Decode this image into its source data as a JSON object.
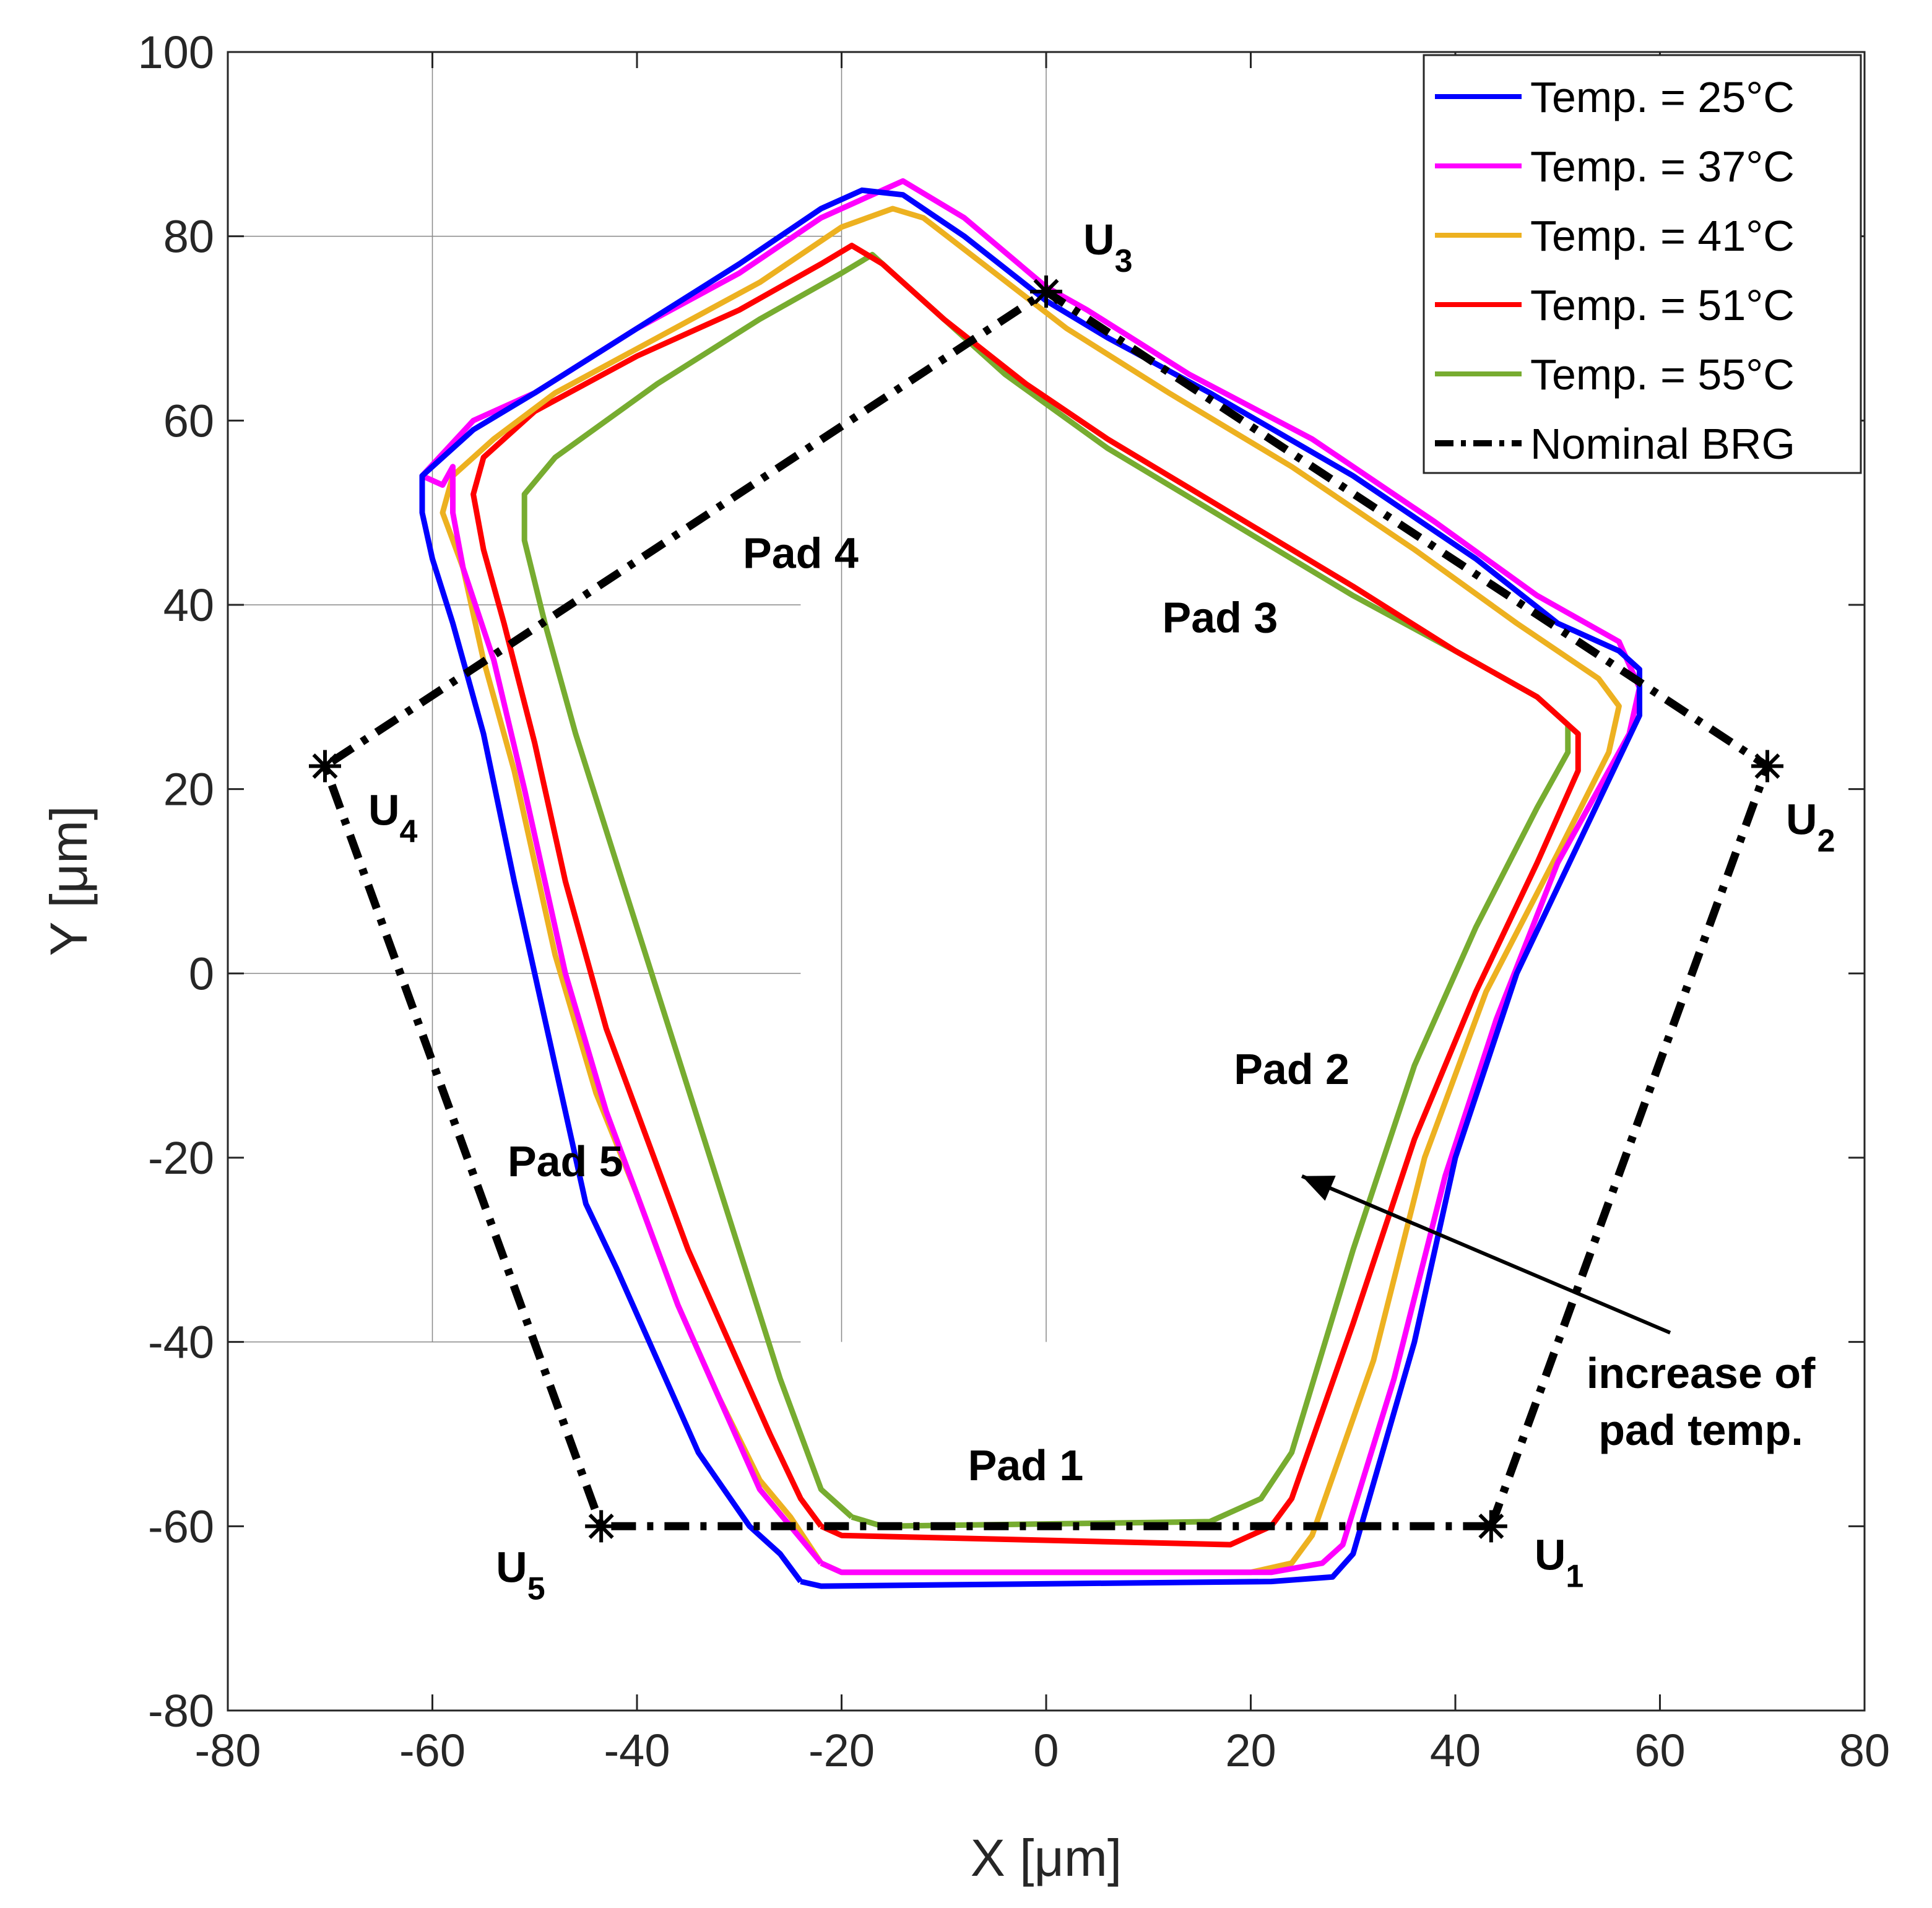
{
  "chart_data": {
    "type": "line",
    "title": "",
    "xlabel": "X [μm]",
    "ylabel": "Y [μm]",
    "xlim": [
      -80,
      80
    ],
    "ylim": [
      -80,
      100
    ],
    "xticks": [
      -80,
      -60,
      -40,
      -20,
      0,
      20,
      40,
      60,
      80
    ],
    "yticks": [
      -80,
      -60,
      -40,
      -20,
      0,
      20,
      40,
      60,
      80,
      100
    ],
    "xtick_labels": [
      "-80",
      "-60",
      "-40",
      "-20",
      "0",
      "20",
      "40",
      "60",
      "80"
    ],
    "ytick_labels": [
      "-80",
      "-60",
      "-40",
      "-20",
      "0",
      "20",
      "40",
      "60",
      "80",
      "100"
    ],
    "legend_position": "top-right",
    "series": [
      {
        "name": "Temp. = 25°C",
        "color": "#0000ff",
        "style": "solid",
        "points": [
          [
            -24,
            -66
          ],
          [
            -22,
            -66.5
          ],
          [
            22,
            -66
          ],
          [
            28,
            -65.5
          ],
          [
            30,
            -63
          ],
          [
            36,
            -40
          ],
          [
            40,
            -20
          ],
          [
            46,
            0
          ],
          [
            52,
            14
          ],
          [
            58,
            28
          ],
          [
            58,
            33
          ],
          [
            56,
            35
          ],
          [
            50,
            38
          ],
          [
            42,
            45
          ],
          [
            30,
            54
          ],
          [
            16,
            63
          ],
          [
            6,
            69
          ],
          [
            0,
            73
          ],
          [
            -8,
            80
          ],
          [
            -14,
            84.5
          ],
          [
            -18,
            85
          ],
          [
            -22,
            83
          ],
          [
            -30,
            77
          ],
          [
            -40,
            70
          ],
          [
            -50,
            63
          ],
          [
            -56,
            59
          ],
          [
            -61,
            54
          ],
          [
            -61,
            50
          ],
          [
            -60,
            45
          ],
          [
            -58,
            38
          ],
          [
            -55,
            26
          ],
          [
            -52,
            10
          ],
          [
            -48,
            -10
          ],
          [
            -45,
            -25
          ],
          [
            -42,
            -32
          ],
          [
            -38,
            -42
          ],
          [
            -34,
            -52
          ],
          [
            -29,
            -60
          ],
          [
            -26,
            -63
          ],
          [
            -24,
            -66
          ]
        ]
      },
      {
        "name": "Temp. = 37°C",
        "color": "#ff00ff",
        "style": "solid",
        "points": [
          [
            -22,
            -64
          ],
          [
            -20,
            -65
          ],
          [
            22,
            -65
          ],
          [
            27,
            -64
          ],
          [
            29,
            -62
          ],
          [
            34,
            -44
          ],
          [
            39,
            -22
          ],
          [
            44,
            -5
          ],
          [
            50,
            12
          ],
          [
            57,
            26
          ],
          [
            58,
            31
          ],
          [
            56,
            36
          ],
          [
            48,
            41
          ],
          [
            38,
            49
          ],
          [
            26,
            58
          ],
          [
            14,
            65
          ],
          [
            4,
            72
          ],
          [
            0,
            74.5
          ],
          [
            -8,
            82
          ],
          [
            -14,
            86
          ],
          [
            -18,
            84
          ],
          [
            -22,
            82
          ],
          [
            -30,
            76
          ],
          [
            -40,
            70
          ],
          [
            -50,
            63
          ],
          [
            -56,
            60
          ],
          [
            -61,
            54
          ],
          [
            -59,
            53
          ],
          [
            -58,
            55
          ],
          [
            -58,
            50
          ],
          [
            -57,
            44
          ],
          [
            -54,
            34
          ],
          [
            -51,
            20
          ],
          [
            -47,
            0
          ],
          [
            -43,
            -15
          ],
          [
            -40,
            -24
          ],
          [
            -36,
            -36
          ],
          [
            -32,
            -46
          ],
          [
            -28,
            -56
          ],
          [
            -25,
            -60
          ],
          [
            -22,
            -64
          ]
        ]
      },
      {
        "name": "Temp. = 41°C",
        "color": "#edb120",
        "style": "solid",
        "points": [
          [
            -22,
            -64
          ],
          [
            -20,
            -65
          ],
          [
            20,
            -65
          ],
          [
            24,
            -64
          ],
          [
            26,
            -61
          ],
          [
            32,
            -42
          ],
          [
            37,
            -20
          ],
          [
            43,
            -2
          ],
          [
            50,
            13
          ],
          [
            55,
            24
          ],
          [
            56,
            29
          ],
          [
            54,
            32
          ],
          [
            46,
            38
          ],
          [
            36,
            46
          ],
          [
            24,
            55
          ],
          [
            12,
            63
          ],
          [
            2,
            70
          ],
          [
            -5,
            76
          ],
          [
            -12,
            82
          ],
          [
            -15,
            83
          ],
          [
            -20,
            81
          ],
          [
            -28,
            75
          ],
          [
            -38,
            69
          ],
          [
            -48,
            63
          ],
          [
            -54,
            58
          ],
          [
            -58,
            54
          ],
          [
            -59,
            50
          ],
          [
            -57,
            44
          ],
          [
            -55,
            34
          ],
          [
            -52,
            22
          ],
          [
            -48,
            2
          ],
          [
            -44,
            -13
          ],
          [
            -40,
            -24
          ],
          [
            -36,
            -36
          ],
          [
            -32,
            -46
          ],
          [
            -28,
            -55
          ],
          [
            -25,
            -59
          ],
          [
            -22,
            -64
          ]
        ]
      },
      {
        "name": "Temp. = 51°C",
        "color": "#ff0000",
        "style": "solid",
        "points": [
          [
            -22,
            -60
          ],
          [
            -20,
            -61
          ],
          [
            18,
            -62
          ],
          [
            22,
            -60
          ],
          [
            24,
            -57
          ],
          [
            30,
            -38
          ],
          [
            36,
            -18
          ],
          [
            42,
            -2
          ],
          [
            48,
            12
          ],
          [
            52,
            22
          ],
          [
            52,
            26
          ],
          [
            48,
            30
          ],
          [
            40,
            35
          ],
          [
            30,
            42
          ],
          [
            18,
            50
          ],
          [
            6,
            58
          ],
          [
            -2,
            64
          ],
          [
            -10,
            71
          ],
          [
            -16,
            77
          ],
          [
            -19,
            79
          ],
          [
            -22,
            77
          ],
          [
            -30,
            72
          ],
          [
            -40,
            67
          ],
          [
            -50,
            61
          ],
          [
            -55,
            56
          ],
          [
            -56,
            52
          ],
          [
            -55,
            46
          ],
          [
            -53,
            38
          ],
          [
            -50,
            25
          ],
          [
            -47,
            10
          ],
          [
            -43,
            -6
          ],
          [
            -39,
            -18
          ],
          [
            -35,
            -30
          ],
          [
            -31,
            -40
          ],
          [
            -27,
            -50
          ],
          [
            -24,
            -57
          ],
          [
            -22,
            -60
          ]
        ]
      },
      {
        "name": "Temp. = 55°C",
        "color": "#77ac30",
        "style": "solid",
        "points": [
          [
            -19,
            -59
          ],
          [
            -16,
            -60
          ],
          [
            16,
            -59.5
          ],
          [
            21,
            -57
          ],
          [
            24,
            -52
          ],
          [
            30,
            -30
          ],
          [
            36,
            -10
          ],
          [
            42,
            5
          ],
          [
            48,
            18
          ],
          [
            51,
            24
          ],
          [
            51,
            27
          ],
          [
            48,
            30
          ],
          [
            40,
            35
          ],
          [
            30,
            41
          ],
          [
            18,
            49
          ],
          [
            6,
            57
          ],
          [
            -4,
            65
          ],
          [
            -10,
            71
          ],
          [
            -15,
            76
          ],
          [
            -17,
            78
          ],
          [
            -20,
            76
          ],
          [
            -28,
            71
          ],
          [
            -38,
            64
          ],
          [
            -48,
            56
          ],
          [
            -51,
            52
          ],
          [
            -51,
            47
          ],
          [
            -49,
            38
          ],
          [
            -46,
            26
          ],
          [
            -42,
            12
          ],
          [
            -38,
            -2
          ],
          [
            -34,
            -16
          ],
          [
            -30,
            -30
          ],
          [
            -26,
            -44
          ],
          [
            -22,
            -56
          ],
          [
            -19,
            -59
          ]
        ]
      },
      {
        "name": "Nominal BRG",
        "color": "#000000",
        "style": "dashdot",
        "points": [
          [
            43.5,
            -60
          ],
          [
            70.5,
            22.5
          ],
          [
            0,
            74
          ],
          [
            -70.5,
            22.5
          ],
          [
            -43.5,
            -60
          ],
          [
            43.5,
            -60
          ]
        ]
      }
    ],
    "vertices": [
      {
        "label": "U",
        "sub": "1",
        "x": 43.5,
        "y": -60
      },
      {
        "label": "U",
        "sub": "2",
        "x": 70.5,
        "y": 22.5
      },
      {
        "label": "U",
        "sub": "3",
        "x": 0,
        "y": 74
      },
      {
        "label": "U",
        "sub": "4",
        "x": -70.5,
        "y": 22.5
      },
      {
        "label": "U",
        "sub": "5",
        "x": -43.5,
        "y": -60
      }
    ],
    "pad_labels": [
      {
        "text": "Pad 1",
        "x": -2,
        "y": -55
      },
      {
        "text": "Pad 2",
        "x": 24,
        "y": -12
      },
      {
        "text": "Pad 3",
        "x": 17,
        "y": 37
      },
      {
        "text": "Pad 4",
        "x": -24,
        "y": 44
      },
      {
        "text": "Pad 5",
        "x": -47,
        "y": -22
      }
    ],
    "annotation": {
      "lines": [
        "increase of",
        "pad temp."
      ],
      "arrow_from": [
        61,
        -39
      ],
      "arrow_to": [
        25,
        -22
      ]
    }
  }
}
